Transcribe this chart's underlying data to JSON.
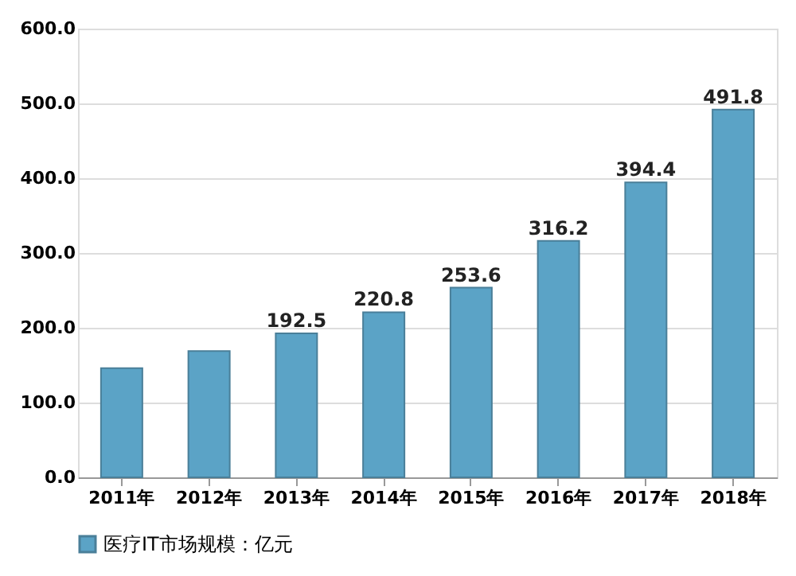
{
  "chart_data": {
    "type": "bar",
    "categories": [
      "2011年",
      "2012年",
      "2013年",
      "2014年",
      "2015年",
      "2016年",
      "2017年",
      "2018年"
    ],
    "series": [
      {
        "name": "医疗IT市场规模：亿元",
        "color": "#5ba3c6",
        "values": [
          146,
          169,
          192.5,
          220.8,
          253.6,
          316.2,
          394.4,
          491.8
        ],
        "value_labels": [
          null,
          null,
          "192.5",
          "220.8",
          "253.6",
          "316.2",
          "394.4",
          "491.8"
        ]
      }
    ],
    "ylim": [
      0,
      600
    ],
    "yticks": [
      {
        "value": 0,
        "label": "0.0"
      },
      {
        "value": 100,
        "label": "100.0"
      },
      {
        "value": 200,
        "label": "200.0"
      },
      {
        "value": 300,
        "label": "300.0"
      },
      {
        "value": 400,
        "label": "400.0"
      },
      {
        "value": 500,
        "label": "500.0"
      },
      {
        "value": 600,
        "label": "600.0"
      }
    ],
    "grid": "y",
    "legend": "bottom"
  }
}
